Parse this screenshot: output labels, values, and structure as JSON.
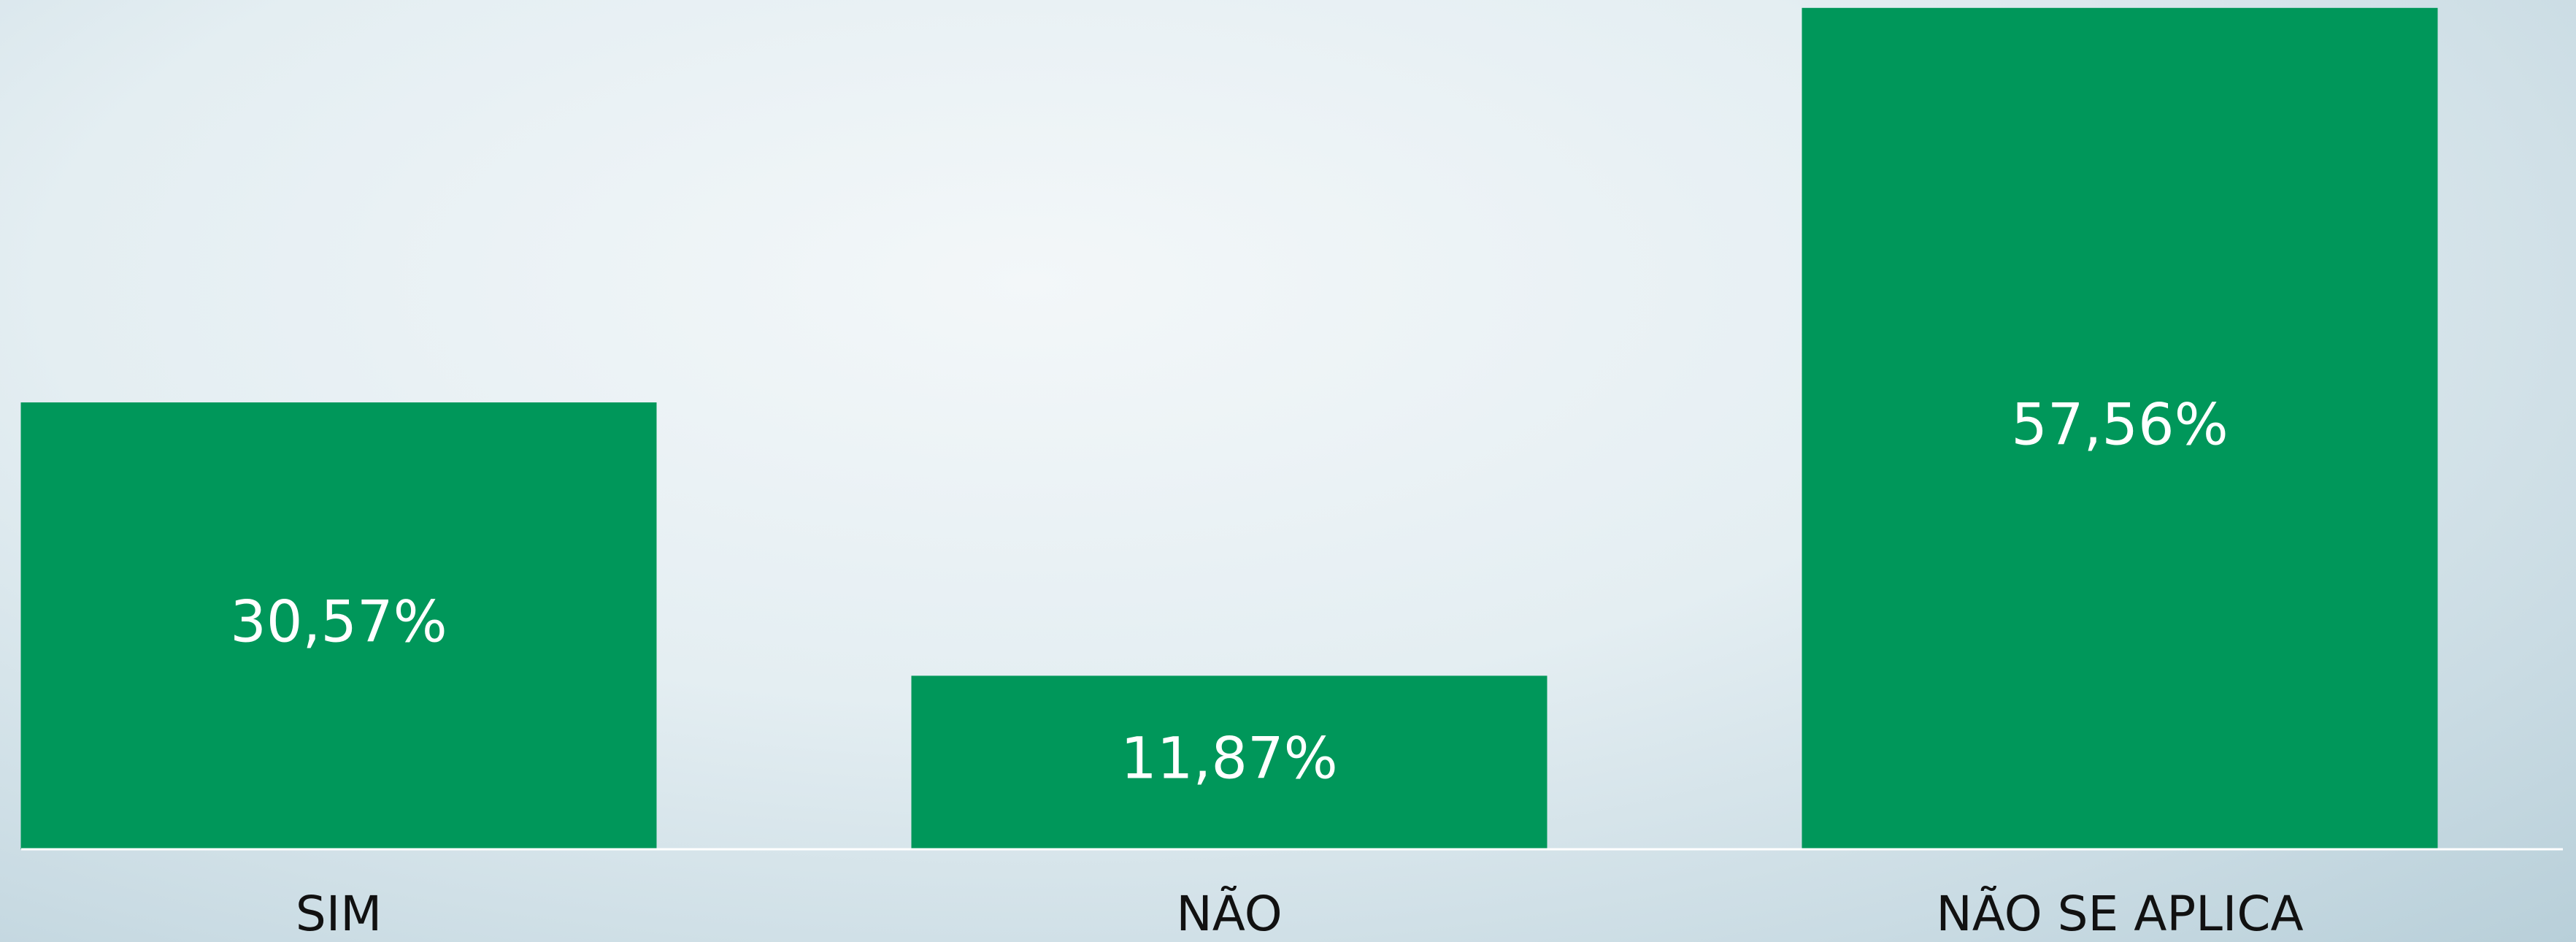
{
  "chart_data": {
    "type": "bar",
    "categories": [
      "SIM",
      "NÃO",
      "NÃO SE APLICA"
    ],
    "values": [
      30.57,
      11.87,
      57.56
    ],
    "value_labels": [
      "30,57%",
      "11,87%",
      "57,56%"
    ],
    "color": "#00975a",
    "ylim": [
      0,
      58
    ]
  }
}
